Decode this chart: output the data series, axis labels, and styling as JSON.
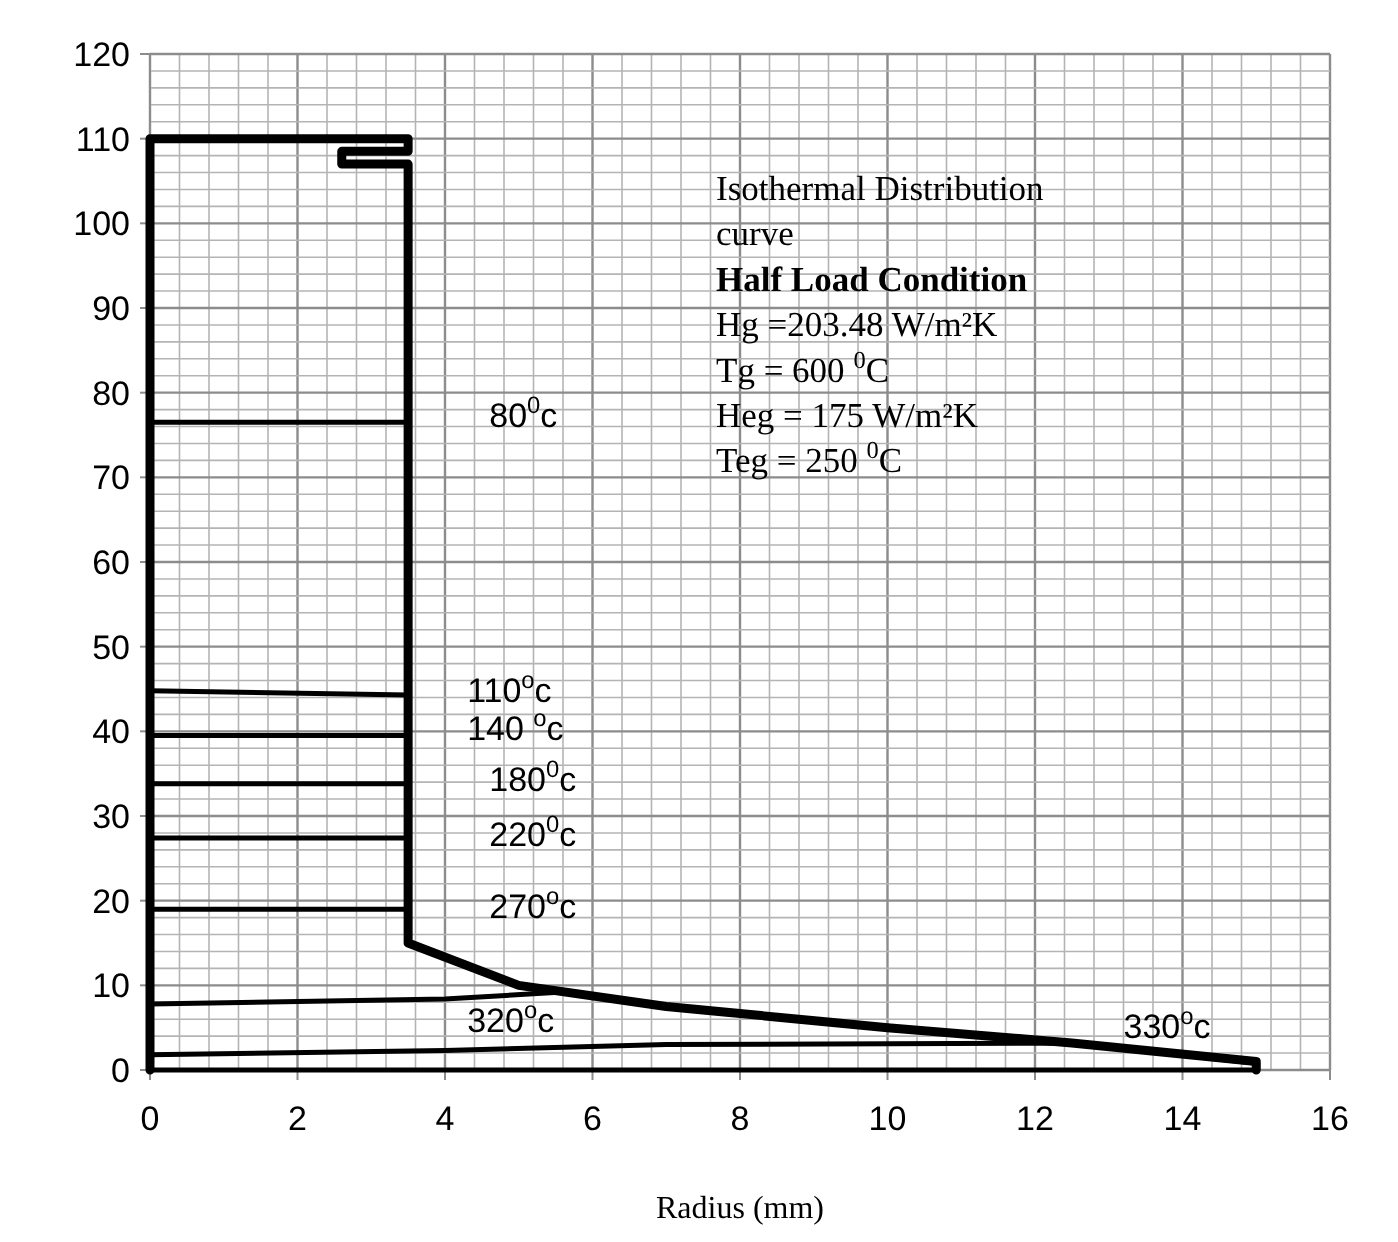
{
  "chart_data": {
    "type": "line",
    "xlabel": "Radius (mm)",
    "xlim": [
      0,
      16
    ],
    "ylim": [
      0,
      120
    ],
    "xticks": [
      0,
      {
        "value": 0.4,
        "label": null
      },
      {
        "value": 0.8,
        "label": null
      },
      {
        "value": 1.2,
        "label": null
      },
      {
        "value": 1.6,
        "label": null
      },
      2,
      {
        "value": 2.4,
        "label": null
      },
      {
        "value": 2.8,
        "label": null
      },
      {
        "value": 3.2,
        "label": null
      },
      {
        "value": 3.6,
        "label": null
      },
      4,
      {
        "value": 4.4,
        "label": null
      },
      {
        "value": 4.8,
        "label": null
      },
      {
        "value": 5.2,
        "label": null
      },
      {
        "value": 5.6,
        "label": null
      },
      6,
      {
        "value": 6.4,
        "label": null
      },
      {
        "value": 6.8,
        "label": null
      },
      {
        "value": 7.2,
        "label": null
      },
      {
        "value": 7.6,
        "label": null
      },
      8,
      {
        "value": 8.4,
        "label": null
      },
      {
        "value": 8.8,
        "label": null
      },
      {
        "value": 9.2,
        "label": null
      },
      {
        "value": 9.6,
        "label": null
      },
      10,
      {
        "value": 10.4,
        "label": null
      },
      {
        "value": 10.8,
        "label": null
      },
      {
        "value": 11.2,
        "label": null
      },
      {
        "value": 11.6,
        "label": null
      },
      12,
      {
        "value": 12.4,
        "label": null
      },
      {
        "value": 12.8,
        "label": null
      },
      {
        "value": 13.2,
        "label": null
      },
      {
        "value": 13.6,
        "label": null
      },
      14,
      {
        "value": 14.4,
        "label": null
      },
      {
        "value": 14.8,
        "label": null
      },
      {
        "value": 15.2,
        "label": null
      },
      {
        "value": 15.6,
        "label": null
      },
      16
    ],
    "yticks": [
      0,
      {
        "value": 2,
        "label": null
      },
      {
        "value": 4,
        "label": null
      },
      {
        "value": 6,
        "label": null
      },
      {
        "value": 8,
        "label": null
      },
      10,
      {
        "value": 12,
        "label": null
      },
      {
        "value": 14,
        "label": null
      },
      {
        "value": 16,
        "label": null
      },
      {
        "value": 18,
        "label": null
      },
      20,
      {
        "value": 22,
        "label": null
      },
      {
        "value": 24,
        "label": null
      },
      {
        "value": 26,
        "label": null
      },
      {
        "value": 28,
        "label": null
      },
      30,
      {
        "value": 32,
        "label": null
      },
      {
        "value": 34,
        "label": null
      },
      {
        "value": 36,
        "label": null
      },
      {
        "value": 38,
        "label": null
      },
      40,
      {
        "value": 42,
        "label": null
      },
      {
        "value": 44,
        "label": null
      },
      {
        "value": 46,
        "label": null
      },
      {
        "value": 48,
        "label": null
      },
      50,
      {
        "value": 52,
        "label": null
      },
      {
        "value": 54,
        "label": null
      },
      {
        "value": 56,
        "label": null
      },
      {
        "value": 58,
        "label": null
      },
      60,
      {
        "value": 62,
        "label": null
      },
      {
        "value": 64,
        "label": null
      },
      {
        "value": 66,
        "label": null
      },
      {
        "value": 68,
        "label": null
      },
      70,
      {
        "value": 72,
        "label": null
      },
      {
        "value": 74,
        "label": null
      },
      {
        "value": 76,
        "label": null
      },
      {
        "value": 78,
        "label": null
      },
      80,
      {
        "value": 82,
        "label": null
      },
      {
        "value": 84,
        "label": null
      },
      {
        "value": 86,
        "label": null
      },
      {
        "value": 88,
        "label": null
      },
      90,
      {
        "value": 92,
        "label": null
      },
      {
        "value": 94,
        "label": null
      },
      {
        "value": 96,
        "label": null
      },
      {
        "value": 98,
        "label": null
      },
      100,
      {
        "value": 102,
        "label": null
      },
      {
        "value": 104,
        "label": null
      },
      {
        "value": 106,
        "label": null
      },
      {
        "value": 108,
        "label": null
      },
      110,
      {
        "value": 112,
        "label": null
      },
      {
        "value": 114,
        "label": null
      },
      {
        "value": 116,
        "label": null
      },
      {
        "value": 118,
        "label": null
      },
      120
    ],
    "grid": true,
    "marker": "none",
    "line_style": "solid",
    "series": [
      {
        "color": "#000000",
        "x": [
          0,
          0,
          3.5,
          3.5,
          2.6,
          2.6,
          3.5,
          3.5,
          5,
          7,
          10,
          12.5,
          15,
          15
        ],
        "values": [
          0,
          110,
          110,
          108.5,
          108.5,
          107,
          107,
          15,
          10,
          7.5,
          5,
          3.2,
          1,
          0
        ]
      },
      {
        "color": "#000000",
        "x": [
          0,
          15
        ],
        "values": [
          0,
          0
        ]
      },
      {
        "color": "#000000",
        "x": [
          0,
          3.5
        ],
        "values": [
          76.5,
          76.5
        ]
      },
      {
        "color": "#000000",
        "x": [
          0,
          3.5
        ],
        "values": [
          44.8,
          44.3
        ]
      },
      {
        "color": "#000000",
        "x": [
          0,
          3.5
        ],
        "values": [
          39.5,
          39.5
        ]
      },
      {
        "color": "#000000",
        "x": [
          0,
          3.5
        ],
        "values": [
          33.8,
          33.8
        ]
      },
      {
        "color": "#000000",
        "x": [
          0,
          3.5
        ],
        "values": [
          27.4,
          27.4
        ]
      },
      {
        "color": "#000000",
        "x": [
          0,
          3.5
        ],
        "values": [
          19,
          19
        ]
      },
      {
        "color": "#000000",
        "x": [
          0,
          4,
          5.6
        ],
        "values": [
          7.8,
          8.4,
          9.2
        ]
      },
      {
        "color": "#000000",
        "x": [
          0,
          4,
          7,
          12.5,
          15
        ],
        "values": [
          1.8,
          2.3,
          3,
          3.2,
          0.8
        ]
      }
    ],
    "annotations": [
      "Isothermal Distribution curve",
      "Half Load Condition",
      "Hg =203.48 W/m²K",
      "Tg = 600 $^{0}$C",
      "Heg = 175 W/m²K",
      "Teg = 250 $^{0}$C",
      "80$^{0}$c",
      "110$^{o}$c",
      "140 $^{o}$c",
      "180$^{0}$c",
      "220$^{0}$c",
      "270$^{o}$c",
      "320$^{o}$c",
      "330$^{o}$c"
    ]
  }
}
